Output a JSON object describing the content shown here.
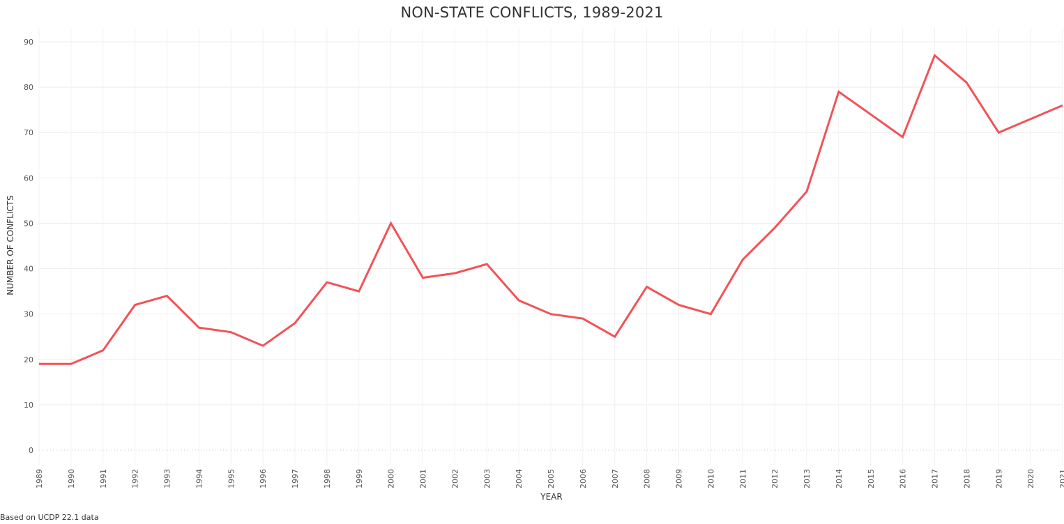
{
  "chart_data": {
    "type": "line",
    "title": "NON-STATE CONFLICTS, 1989-2021",
    "xlabel": "YEAR",
    "ylabel": "NUMBER OF CONFLICTS",
    "source_note": "Based on UCDP 22.1 data",
    "ylim": [
      0,
      90
    ],
    "y_ticks": [
      0,
      10,
      20,
      30,
      40,
      50,
      60,
      70,
      80,
      90
    ],
    "grid": true,
    "line_color": "#f25257",
    "x": [
      "1989",
      "1990",
      "1991",
      "1992",
      "1993",
      "1994",
      "1995",
      "1996",
      "1997",
      "1998",
      "1999",
      "2000",
      "2001",
      "2002",
      "2003",
      "2004",
      "2005",
      "2006",
      "2007",
      "2008",
      "2009",
      "2010",
      "2011",
      "2012",
      "2013",
      "2014",
      "2015",
      "2016",
      "2017",
      "2018",
      "2019",
      "2020",
      "2021"
    ],
    "series": [
      {
        "values": [
          19,
          19,
          22,
          32,
          34,
          27,
          26,
          23,
          28,
          37,
          35,
          50,
          38,
          39,
          41,
          33,
          30,
          29,
          25,
          36,
          32,
          30,
          42,
          49,
          57,
          79,
          74,
          69,
          87,
          81,
          70,
          73,
          76
        ]
      }
    ]
  }
}
